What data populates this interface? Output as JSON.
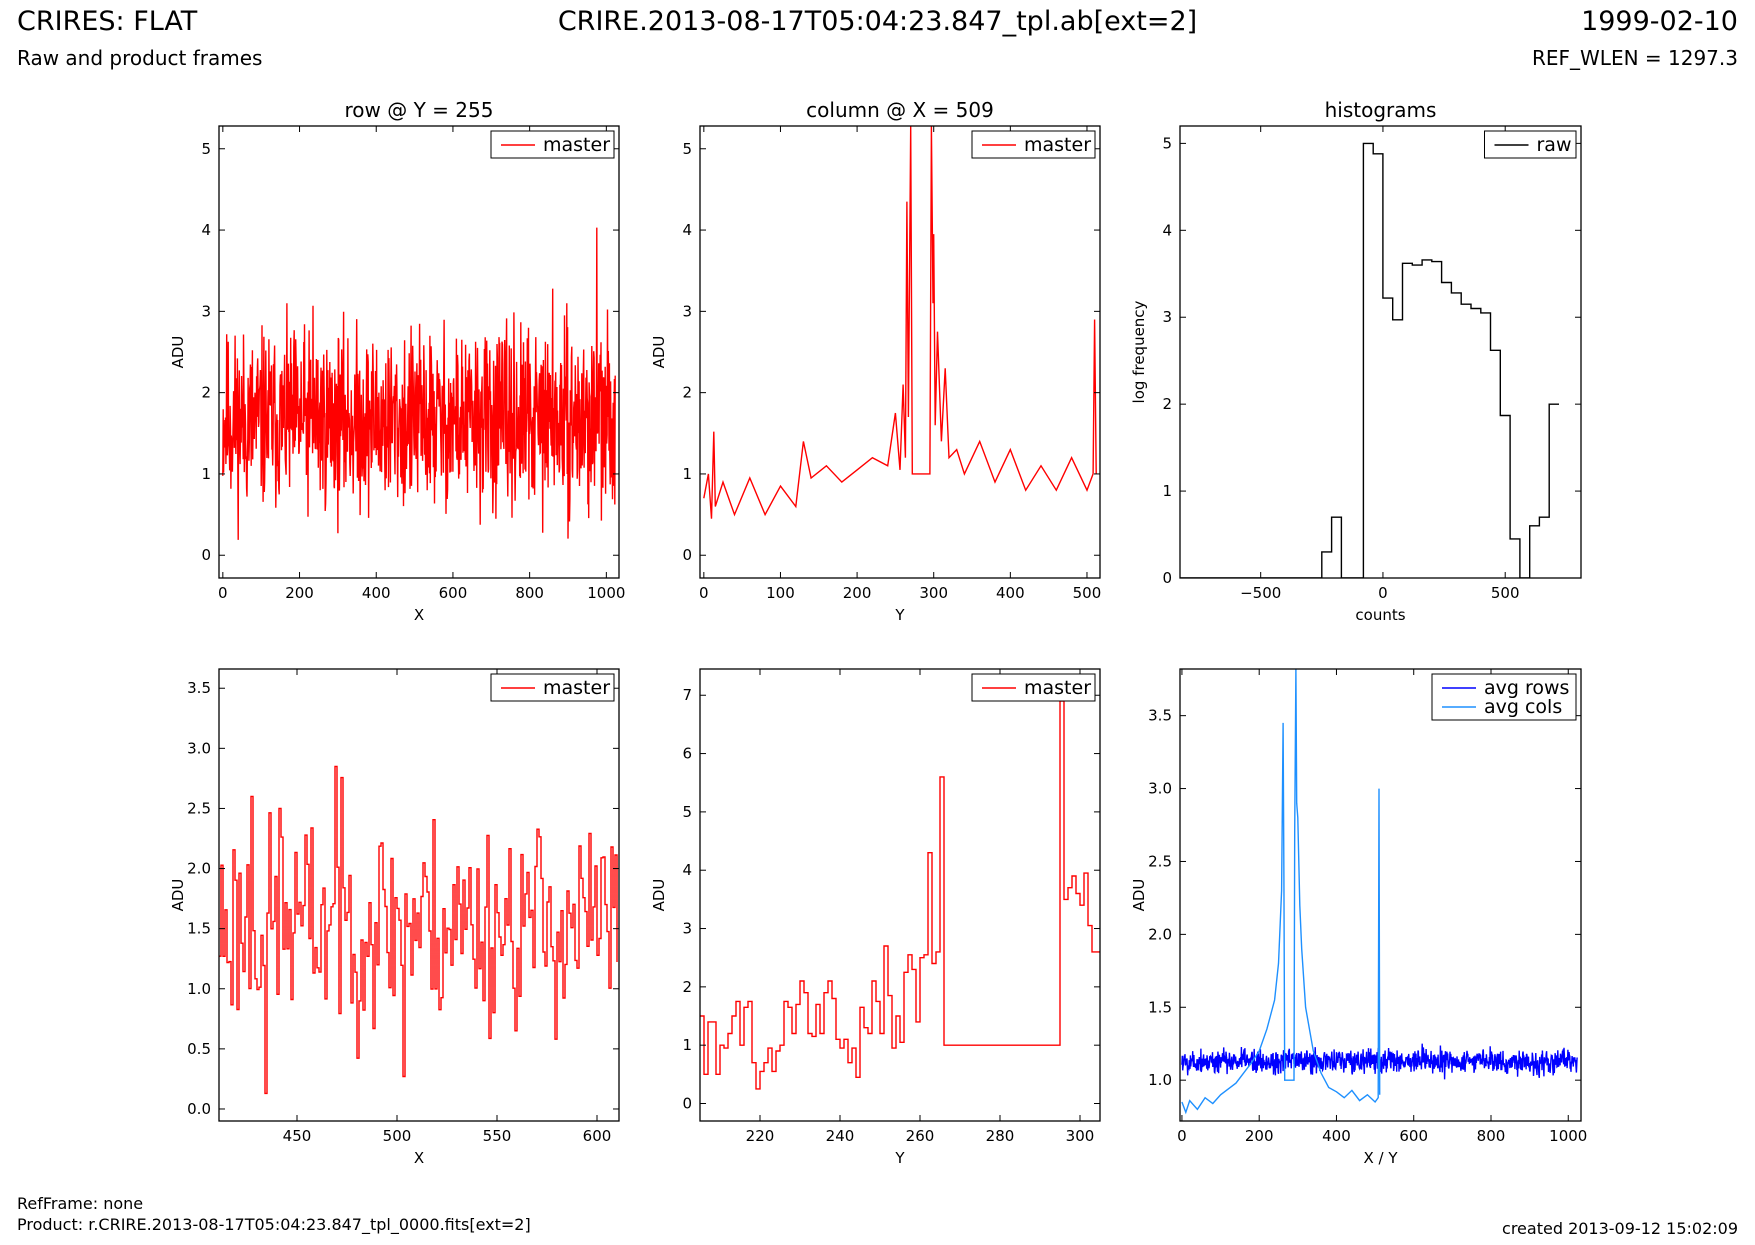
{
  "header": {
    "title_left": "CRIRES: FLAT",
    "subtitle_left": "Raw and product frames",
    "title_center": "CRIRE.2013-08-17T05:04:23.847_tpl.ab[ext=2]",
    "title_right": "1999-02-10",
    "subtitle_right": "REF_WLEN = 1297.3"
  },
  "footer": {
    "ref_frame": "RefFrame: none",
    "product": "Product: r.CRIRE.2013-08-17T05:04:23.847_tpl_0000.fits[ext=2]",
    "created": "created 2013-09-12 15:02:09"
  },
  "colors": {
    "master": "#ff0000",
    "raw": "#000000",
    "avg_rows": "#0000ff",
    "avg_cols": "#1e90ff"
  },
  "chart_data": [
    {
      "type": "line",
      "title": "row @ Y = 255",
      "xlabel": "X",
      "ylabel": "ADU",
      "xlim": [
        -10,
        1033
      ],
      "ylim": [
        -0.28,
        5.28
      ],
      "xticks": [
        0,
        200,
        400,
        600,
        800,
        1000
      ],
      "yticks": [
        0,
        1,
        2,
        3,
        4,
        5
      ],
      "legend": "top-right",
      "series": [
        {
          "name": "master",
          "color": "#ff0000",
          "step": false,
          "noise": {
            "n": 1024,
            "x0": 0,
            "dx": 1,
            "base": 1.65,
            "amp": 1.6,
            "seed": 11,
            "min": 0.12,
            "max": 3.1
          },
          "spikes": [
            [
              975,
              4.03
            ],
            [
              860,
              3.28
            ],
            [
              235,
              3.07
            ]
          ]
        }
      ]
    },
    {
      "type": "line",
      "title": "column @ X = 509",
      "xlabel": "Y",
      "ylabel": "ADU",
      "xlim": [
        -5,
        517
      ],
      "ylim": [
        -0.28,
        5.28
      ],
      "xticks": [
        0,
        100,
        200,
        300,
        400,
        500
      ],
      "yticks": [
        0,
        1,
        2,
        3,
        4,
        5
      ],
      "legend": "top-right",
      "series": [
        {
          "name": "master",
          "color": "#ff0000",
          "step": false,
          "points": [
            [
              0,
              0.7
            ],
            [
              6,
              1.0
            ],
            [
              10,
              0.45
            ],
            [
              13,
              1.52
            ],
            [
              15,
              0.6
            ],
            [
              25,
              0.9
            ],
            [
              40,
              0.5
            ],
            [
              60,
              0.95
            ],
            [
              80,
              0.5
            ],
            [
              100,
              0.85
            ],
            [
              120,
              0.6
            ],
            [
              130,
              1.4
            ],
            [
              140,
              0.95
            ],
            [
              160,
              1.1
            ],
            [
              180,
              0.9
            ],
            [
              200,
              1.05
            ],
            [
              220,
              1.2
            ],
            [
              240,
              1.1
            ],
            [
              250,
              1.75
            ],
            [
              256,
              1.05
            ],
            [
              260,
              2.1
            ],
            [
              263,
              1.2
            ],
            [
              265,
              4.35
            ],
            [
              267,
              1.7
            ],
            [
              270,
              5.28
            ],
            [
              272,
              1.0
            ],
            [
              295,
              1.0
            ],
            [
              297,
              5.28
            ],
            [
              299,
              3.1
            ],
            [
              300,
              3.95
            ],
            [
              302,
              1.6
            ],
            [
              305,
              2.75
            ],
            [
              310,
              1.4
            ],
            [
              315,
              2.3
            ],
            [
              320,
              1.2
            ],
            [
              330,
              1.3
            ],
            [
              340,
              1.0
            ],
            [
              360,
              1.4
            ],
            [
              380,
              0.9
            ],
            [
              400,
              1.3
            ],
            [
              420,
              0.8
            ],
            [
              440,
              1.1
            ],
            [
              460,
              0.8
            ],
            [
              480,
              1.2
            ],
            [
              500,
              0.8
            ],
            [
              508,
              1.0
            ],
            [
              510,
              2.9
            ],
            [
              512,
              1.0
            ]
          ]
        }
      ]
    },
    {
      "type": "line",
      "title": "histograms",
      "xlabel": "counts",
      "ylabel": "log frequency",
      "xlim": [
        -830,
        810
      ],
      "ylim": [
        0,
        5.2
      ],
      "xticks": [
        -500,
        0,
        500
      ],
      "yticks": [
        0,
        1,
        2,
        3,
        4,
        5
      ],
      "legend": "top-right",
      "series": [
        {
          "name": "raw",
          "color": "#000000",
          "step": true,
          "points": [
            [
              -830,
              0
            ],
            [
              -250,
              0
            ],
            [
              -250,
              0.3
            ],
            [
              -210,
              0.3
            ],
            [
              -210,
              0.7
            ],
            [
              -170,
              0.7
            ],
            [
              -170,
              0
            ],
            [
              -80,
              0
            ],
            [
              -80,
              5.0
            ],
            [
              -40,
              5.0
            ],
            [
              -40,
              4.88
            ],
            [
              0,
              4.88
            ],
            [
              0,
              3.22
            ],
            [
              40,
              3.22
            ],
            [
              40,
              2.97
            ],
            [
              80,
              2.97
            ],
            [
              80,
              3.62
            ],
            [
              120,
              3.62
            ],
            [
              120,
              3.6
            ],
            [
              160,
              3.6
            ],
            [
              160,
              3.66
            ],
            [
              200,
              3.66
            ],
            [
              200,
              3.64
            ],
            [
              240,
              3.64
            ],
            [
              240,
              3.4
            ],
            [
              280,
              3.4
            ],
            [
              280,
              3.28
            ],
            [
              320,
              3.28
            ],
            [
              320,
              3.15
            ],
            [
              360,
              3.15
            ],
            [
              360,
              3.1
            ],
            [
              400,
              3.1
            ],
            [
              400,
              3.05
            ],
            [
              440,
              3.05
            ],
            [
              440,
              2.62
            ],
            [
              480,
              2.62
            ],
            [
              480,
              1.87
            ],
            [
              520,
              1.87
            ],
            [
              520,
              0.45
            ],
            [
              560,
              0.45
            ],
            [
              560,
              0
            ],
            [
              600,
              0
            ],
            [
              600,
              0.6
            ],
            [
              640,
              0.6
            ],
            [
              640,
              0.7
            ],
            [
              680,
              0.7
            ],
            [
              680,
              2.0
            ],
            [
              720,
              2.0
            ]
          ]
        }
      ]
    },
    {
      "type": "line",
      "title": "",
      "xlabel": "X",
      "ylabel": "ADU",
      "xlim": [
        411,
        611
      ],
      "ylim": [
        -0.1,
        3.66
      ],
      "xticks": [
        450,
        500,
        550,
        600
      ],
      "yticks": [
        0.0,
        0.5,
        1.0,
        1.5,
        2.0,
        2.5,
        3.0,
        3.5
      ],
      "legend": "top-right",
      "series": [
        {
          "name": "master",
          "color": "#ff0000",
          "step": true,
          "noise": {
            "n": 200,
            "x0": 411,
            "dx": 1,
            "base": 1.55,
            "amp": 1.3,
            "seed": 23,
            "min": 0.13,
            "max": 2.85
          },
          "spikes": [
            [
              434,
              0.13
            ],
            [
              469,
              2.85
            ],
            [
              427,
              2.6
            ],
            [
              441,
              2.5
            ],
            [
              503,
              0.27
            ]
          ]
        }
      ]
    },
    {
      "type": "line",
      "title": "",
      "xlabel": "Y",
      "ylabel": "ADU",
      "xlim": [
        205,
        305
      ],
      "ylim": [
        -0.3,
        7.45
      ],
      "xticks": [
        220,
        240,
        260,
        280,
        300
      ],
      "yticks": [
        0,
        1,
        2,
        3,
        4,
        5,
        6,
        7
      ],
      "legend": "top-right",
      "series": [
        {
          "name": "master",
          "color": "#ff0000",
          "step": true,
          "points": [
            [
              205,
              1.5
            ],
            [
              206,
              0.5
            ],
            [
              207,
              1.4
            ],
            [
              208,
              1.4
            ],
            [
              209,
              0.5
            ],
            [
              210,
              1.0
            ],
            [
              211,
              0.95
            ],
            [
              212,
              1.2
            ],
            [
              213,
              1.5
            ],
            [
              214,
              1.75
            ],
            [
              215,
              1.0
            ],
            [
              216,
              1.65
            ],
            [
              217,
              1.75
            ],
            [
              218,
              0.7
            ],
            [
              219,
              0.25
            ],
            [
              220,
              0.55
            ],
            [
              221,
              0.7
            ],
            [
              222,
              0.95
            ],
            [
              223,
              0.55
            ],
            [
              224,
              0.9
            ],
            [
              225,
              1.0
            ],
            [
              226,
              1.75
            ],
            [
              227,
              1.65
            ],
            [
              228,
              1.2
            ],
            [
              229,
              1.7
            ],
            [
              230,
              2.1
            ],
            [
              231,
              1.9
            ],
            [
              232,
              1.2
            ],
            [
              233,
              1.15
            ],
            [
              234,
              1.7
            ],
            [
              235,
              1.2
            ],
            [
              236,
              1.9
            ],
            [
              237,
              2.1
            ],
            [
              238,
              1.8
            ],
            [
              239,
              1.1
            ],
            [
              240,
              0.95
            ],
            [
              241,
              1.1
            ],
            [
              242,
              0.7
            ],
            [
              243,
              0.95
            ],
            [
              244,
              0.45
            ],
            [
              245,
              1.65
            ],
            [
              246,
              1.3
            ],
            [
              247,
              1.2
            ],
            [
              248,
              2.1
            ],
            [
              249,
              1.75
            ],
            [
              250,
              1.2
            ],
            [
              251,
              2.7
            ],
            [
              252,
              1.85
            ],
            [
              253,
              0.95
            ],
            [
              254,
              1.5
            ],
            [
              255,
              1.05
            ],
            [
              256,
              2.25
            ],
            [
              257,
              2.55
            ],
            [
              258,
              2.3
            ],
            [
              259,
              1.4
            ],
            [
              260,
              2.5
            ],
            [
              261,
              2.55
            ],
            [
              262,
              4.3
            ],
            [
              263,
              2.4
            ],
            [
              264,
              2.6
            ],
            [
              265,
              5.6
            ],
            [
              266,
              1.0
            ],
            [
              295,
              6.9
            ],
            [
              296,
              3.5
            ],
            [
              297,
              3.7
            ],
            [
              298,
              3.9
            ],
            [
              299,
              3.6
            ],
            [
              300,
              3.4
            ],
            [
              301,
              3.95
            ],
            [
              302,
              3.05
            ],
            [
              303,
              2.6
            ],
            [
              305,
              2.6
            ]
          ]
        }
      ]
    },
    {
      "type": "line",
      "title": "",
      "xlabel": "X / Y",
      "ylabel": "ADU",
      "xlim": [
        -5,
        1033
      ],
      "ylim": [
        0.72,
        3.82
      ],
      "xticks": [
        0,
        200,
        400,
        600,
        800,
        1000
      ],
      "yticks": [
        1.0,
        1.5,
        2.0,
        2.5,
        3.0,
        3.5
      ],
      "legend": "top-right",
      "series": [
        {
          "name": "avg rows",
          "color": "#0000ff",
          "step": false,
          "noise": {
            "n": 1024,
            "x0": 0,
            "dx": 1,
            "base": 1.13,
            "amp": 0.13,
            "seed": 5,
            "min": 0.98,
            "max": 1.33
          }
        },
        {
          "name": "avg cols",
          "color": "#1e90ff",
          "step": false,
          "points": [
            [
              0,
              0.85
            ],
            [
              10,
              0.78
            ],
            [
              20,
              0.86
            ],
            [
              40,
              0.8
            ],
            [
              60,
              0.88
            ],
            [
              80,
              0.84
            ],
            [
              100,
              0.9
            ],
            [
              120,
              0.94
            ],
            [
              140,
              0.98
            ],
            [
              160,
              1.05
            ],
            [
              180,
              1.12
            ],
            [
              200,
              1.2
            ],
            [
              220,
              1.35
            ],
            [
              240,
              1.55
            ],
            [
              250,
              1.8
            ],
            [
              258,
              2.3
            ],
            [
              262,
              3.45
            ],
            [
              264,
              2.4
            ],
            [
              266,
              1.0
            ],
            [
              290,
              1.0
            ],
            [
              292,
              2.7
            ],
            [
              295,
              3.82
            ],
            [
              297,
              2.9
            ],
            [
              300,
              2.8
            ],
            [
              305,
              2.2
            ],
            [
              310,
              1.9
            ],
            [
              320,
              1.5
            ],
            [
              340,
              1.2
            ],
            [
              360,
              1.05
            ],
            [
              380,
              0.95
            ],
            [
              400,
              0.92
            ],
            [
              420,
              0.88
            ],
            [
              440,
              0.93
            ],
            [
              460,
              0.86
            ],
            [
              480,
              0.9
            ],
            [
              500,
              0.85
            ],
            [
              508,
              0.88
            ],
            [
              510,
              3.0
            ],
            [
              512,
              0.9
            ]
          ]
        }
      ]
    }
  ]
}
